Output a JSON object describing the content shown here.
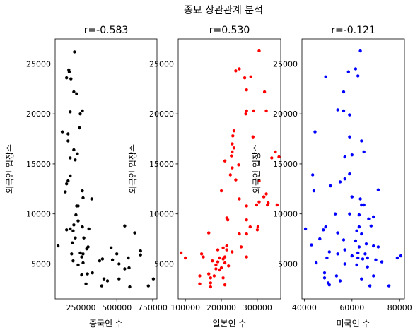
{
  "suptitle": "종묘 상관관계 분석",
  "chart_data": [
    {
      "type": "scatter",
      "title": "r=-0.583",
      "xlabel": "중국인 수",
      "ylabel": "외국인 입장수",
      "color": "#000000",
      "xlim": [
        70000,
        780000
      ],
      "ylim": [
        1500,
        27500
      ],
      "xticks": [
        250000,
        500000,
        750000
      ],
      "xtick_labels": [
        "250000",
        "500000",
        "750000"
      ],
      "yticks": [
        5000,
        10000,
        15000,
        20000,
        25000
      ],
      "ytick_labels": [
        "5000",
        "10000",
        "15000",
        "20000",
        "25000"
      ],
      "points": [
        [
          205000,
          26200
        ],
        [
          165000,
          24400
        ],
        [
          168000,
          24200
        ],
        [
          150000,
          23600
        ],
        [
          180000,
          23500
        ],
        [
          200000,
          22200
        ],
        [
          220000,
          22000
        ],
        [
          260000,
          20300
        ],
        [
          245000,
          20000
        ],
        [
          175000,
          20200
        ],
        [
          120000,
          18200
        ],
        [
          160000,
          18000
        ],
        [
          240000,
          18600
        ],
        [
          200000,
          16400
        ],
        [
          160000,
          17300
        ],
        [
          225000,
          16000
        ],
        [
          175000,
          15600
        ],
        [
          210000,
          15400
        ],
        [
          175000,
          13800
        ],
        [
          160000,
          13300
        ],
        [
          150000,
          13000
        ],
        [
          140000,
          12200
        ],
        [
          260000,
          12300
        ],
        [
          265000,
          11600
        ],
        [
          325000,
          11500
        ],
        [
          220000,
          10800
        ],
        [
          230000,
          10800
        ],
        [
          215000,
          9900
        ],
        [
          230000,
          9300
        ],
        [
          200000,
          8900
        ],
        [
          150000,
          8400
        ],
        [
          175000,
          8500
        ],
        [
          195000,
          8300
        ],
        [
          260000,
          8700
        ],
        [
          305000,
          8500
        ],
        [
          555000,
          8800
        ],
        [
          210000,
          7600
        ],
        [
          190000,
          7100
        ],
        [
          270000,
          7600
        ],
        [
          625000,
          8100
        ],
        [
          90000,
          6800
        ],
        [
          185000,
          6000
        ],
        [
          300000,
          6700
        ],
        [
          290000,
          6500
        ],
        [
          245000,
          6100
        ],
        [
          255000,
          5700
        ],
        [
          265000,
          6000
        ],
        [
          195000,
          5300
        ],
        [
          265000,
          5100
        ],
        [
          230000,
          4900
        ],
        [
          460000,
          6600
        ],
        [
          500000,
          6000
        ],
        [
          580000,
          5600
        ],
        [
          665000,
          6300
        ],
        [
          665000,
          5900
        ],
        [
          380000,
          5300
        ],
        [
          400000,
          5500
        ],
        [
          470000,
          5400
        ],
        [
          515000,
          5000
        ],
        [
          585000,
          4600
        ],
        [
          555000,
          4500
        ],
        [
          330000,
          4100
        ],
        [
          255000,
          3900
        ],
        [
          295000,
          4000
        ],
        [
          285000,
          3000
        ],
        [
          410000,
          3500
        ],
        [
          435000,
          3300
        ],
        [
          395000,
          2800
        ],
        [
          515000,
          3500
        ],
        [
          590000,
          2700
        ],
        [
          720000,
          2800
        ],
        [
          755000,
          3500
        ]
      ]
    },
    {
      "type": "scatter",
      "title": "r=0.530",
      "xlabel": "일본인 수",
      "ylabel": "외국인 입장수",
      "color": "#ff0000",
      "xlim": [
        80000,
        365000
      ],
      "ylim": [
        1500,
        27500
      ],
      "xticks": [
        100000,
        200000,
        300000
      ],
      "xtick_labels": [
        "100000",
        "200000",
        "300000"
      ],
      "yticks": [
        5000,
        10000,
        15000,
        20000,
        25000
      ],
      "ytick_labels": [
        "5000",
        "10000",
        "15000",
        "20000",
        "25000"
      ],
      "points": [
        [
          305000,
          26300
        ],
        [
          250000,
          24500
        ],
        [
          240000,
          24300
        ],
        [
          265000,
          23600
        ],
        [
          282000,
          23700
        ],
        [
          270000,
          22400
        ],
        [
          320000,
          22200
        ],
        [
          290000,
          20300
        ],
        [
          268000,
          20000
        ],
        [
          270000,
          20300
        ],
        [
          325000,
          20300
        ],
        [
          235000,
          18300
        ],
        [
          232000,
          17800
        ],
        [
          288000,
          17700
        ],
        [
          235000,
          16600
        ],
        [
          230000,
          17000
        ],
        [
          230000,
          16200
        ],
        [
          350000,
          16200
        ],
        [
          228000,
          15800
        ],
        [
          360000,
          15700
        ],
        [
          340000,
          15600
        ],
        [
          210000,
          15300
        ],
        [
          230000,
          14600
        ],
        [
          248000,
          14900
        ],
        [
          225000,
          13900
        ],
        [
          240000,
          13400
        ],
        [
          305000,
          13300
        ],
        [
          200000,
          12300
        ],
        [
          250000,
          11500
        ],
        [
          318000,
          11700
        ],
        [
          325000,
          12000
        ],
        [
          305000,
          11200
        ],
        [
          330000,
          11100
        ],
        [
          298000,
          10900
        ],
        [
          328000,
          10900
        ],
        [
          270000,
          10800
        ],
        [
          355000,
          10900
        ],
        [
          215000,
          9600
        ],
        [
          218000,
          9400
        ],
        [
          270000,
          9400
        ],
        [
          280000,
          8700
        ],
        [
          302000,
          8700
        ],
        [
          300000,
          8400
        ],
        [
          165000,
          8100
        ],
        [
          250000,
          8000
        ],
        [
          270000,
          8000
        ],
        [
          255000,
          6700
        ],
        [
          215000,
          6800
        ],
        [
          205000,
          6600
        ],
        [
          190000,
          6400
        ],
        [
          230000,
          6200
        ],
        [
          215000,
          6400
        ],
        [
          88000,
          6100
        ],
        [
          145000,
          6000
        ],
        [
          150000,
          5700
        ],
        [
          100000,
          5600
        ],
        [
          195000,
          5600
        ],
        [
          205000,
          5500
        ],
        [
          210000,
          5700
        ],
        [
          270000,
          5700
        ],
        [
          175000,
          5300
        ],
        [
          190000,
          5200
        ],
        [
          210000,
          5100
        ],
        [
          185000,
          4900
        ],
        [
          185000,
          4500
        ],
        [
          200000,
          4600
        ],
        [
          220000,
          4800
        ],
        [
          195000,
          4400
        ],
        [
          165000,
          4000
        ],
        [
          180000,
          3800
        ],
        [
          140000,
          3800
        ],
        [
          170000,
          3600
        ],
        [
          205000,
          3600
        ],
        [
          140000,
          3000
        ],
        [
          170000,
          3100
        ],
        [
          170000,
          2700
        ],
        [
          210000,
          2900
        ]
      ]
    },
    {
      "type": "scatter",
      "title": "r=-0.121",
      "xlabel": "미국인 수",
      "ylabel": "외국인 입장수",
      "color": "#0000ff",
      "xlim": [
        39000,
        82000
      ],
      "ylim": [
        1500,
        27500
      ],
      "xticks": [
        40000,
        60000,
        80000
      ],
      "xtick_labels": [
        "40000",
        "60000",
        "80000"
      ],
      "yticks": [
        5000,
        10000,
        15000,
        20000,
        25000
      ],
      "ytick_labels": [
        "5000",
        "10000",
        "15000",
        "20000",
        "25000"
      ],
      "points": [
        [
          63500,
          26300
        ],
        [
          49000,
          23700
        ],
        [
          58500,
          24200
        ],
        [
          61500,
          24500
        ],
        [
          62500,
          23800
        ],
        [
          56500,
          22200
        ],
        [
          54000,
          20400
        ],
        [
          56500,
          20300
        ],
        [
          59000,
          19900
        ],
        [
          44500,
          18200
        ],
        [
          59000,
          17700
        ],
        [
          64000,
          17300
        ],
        [
          65000,
          16200
        ],
        [
          57000,
          15700
        ],
        [
          60000,
          15900
        ],
        [
          43500,
          13900
        ],
        [
          59000,
          14000
        ],
        [
          55000,
          13200
        ],
        [
          57000,
          13500
        ],
        [
          44000,
          12300
        ],
        [
          51000,
          12800
        ],
        [
          71000,
          12400
        ],
        [
          60000,
          11700
        ],
        [
          63500,
          11500
        ],
        [
          64000,
          10900
        ],
        [
          65000,
          10900
        ],
        [
          53000,
          10000
        ],
        [
          59000,
          10000
        ],
        [
          63000,
          9900
        ],
        [
          69000,
          9700
        ],
        [
          67000,
          9500
        ],
        [
          63000,
          8700
        ],
        [
          68000,
          8800
        ],
        [
          49000,
          8700
        ],
        [
          48000,
          8400
        ],
        [
          40500,
          8500
        ],
        [
          54000,
          8100
        ],
        [
          62000,
          8300
        ],
        [
          64000,
          8000
        ],
        [
          46500,
          7500
        ],
        [
          61500,
          7300
        ],
        [
          66000,
          7000
        ],
        [
          56500,
          7400
        ],
        [
          69000,
          6800
        ],
        [
          43000,
          6900
        ],
        [
          63000,
          6700
        ],
        [
          57000,
          6400
        ],
        [
          71000,
          6700
        ],
        [
          50500,
          6200
        ],
        [
          54000,
          6000
        ],
        [
          62500,
          6100
        ],
        [
          65500,
          6000
        ],
        [
          60000,
          5800
        ],
        [
          66500,
          5600
        ],
        [
          62500,
          5600
        ],
        [
          64500,
          5500
        ],
        [
          70000,
          5400
        ],
        [
          80500,
          5800
        ],
        [
          79000,
          5600
        ],
        [
          49500,
          5600
        ],
        [
          45000,
          5100
        ],
        [
          72500,
          5200
        ],
        [
          57000,
          5000
        ],
        [
          62000,
          4900
        ],
        [
          66500,
          4700
        ],
        [
          48500,
          4100
        ],
        [
          53500,
          3800
        ],
        [
          69000,
          3800
        ],
        [
          48500,
          3600
        ],
        [
          55000,
          3300
        ],
        [
          64000,
          3500
        ],
        [
          50000,
          3100
        ],
        [
          50500,
          2900
        ],
        [
          67500,
          2800
        ],
        [
          75500,
          2800
        ]
      ]
    }
  ]
}
